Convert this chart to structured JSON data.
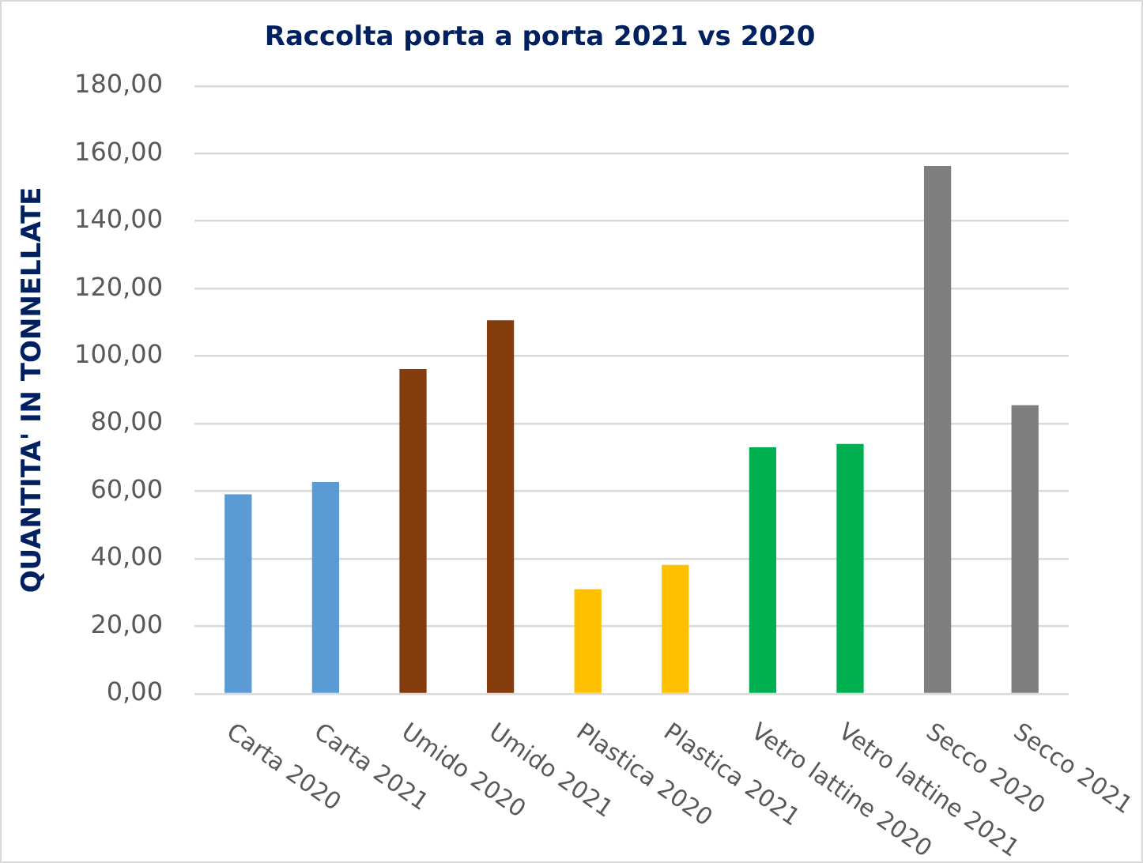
{
  "chart_data": {
    "type": "bar",
    "title": "Raccolta porta a porta 2021 vs 2020",
    "ylabel": "QUANTITA' IN TONNELLATE",
    "categories": [
      "Carta 2020",
      "Carta 2021",
      "Umido 2020",
      "Umido 2021",
      "Plastica 2020",
      "Plastica 2021",
      "Vetro lattine 2020",
      "Vetro lattine 2021",
      "Secco 2020",
      "Secco 2021"
    ],
    "values": [
      59.1,
      62.7,
      96.2,
      110.6,
      31.0,
      38.2,
      73.0,
      74.0,
      156.3,
      85.5
    ],
    "colors": [
      "#5b9bd5",
      "#5b9bd5",
      "#843c0c",
      "#843c0c",
      "#ffc000",
      "#ffc000",
      "#00b050",
      "#00b050",
      "#7f7f7f",
      "#7f7f7f"
    ],
    "ylim": [
      0,
      180
    ],
    "yticks": [
      {
        "value": 0,
        "label": "0,00"
      },
      {
        "value": 20,
        "label": "20,00"
      },
      {
        "value": 40,
        "label": "40,00"
      },
      {
        "value": 60,
        "label": "60,00"
      },
      {
        "value": 80,
        "label": "80,00"
      },
      {
        "value": 100,
        "label": "100,00"
      },
      {
        "value": 120,
        "label": "120,00"
      },
      {
        "value": 140,
        "label": "140,00"
      },
      {
        "value": 160,
        "label": "160,00"
      },
      {
        "value": 180,
        "label": "180,00"
      }
    ],
    "grid": "y"
  }
}
